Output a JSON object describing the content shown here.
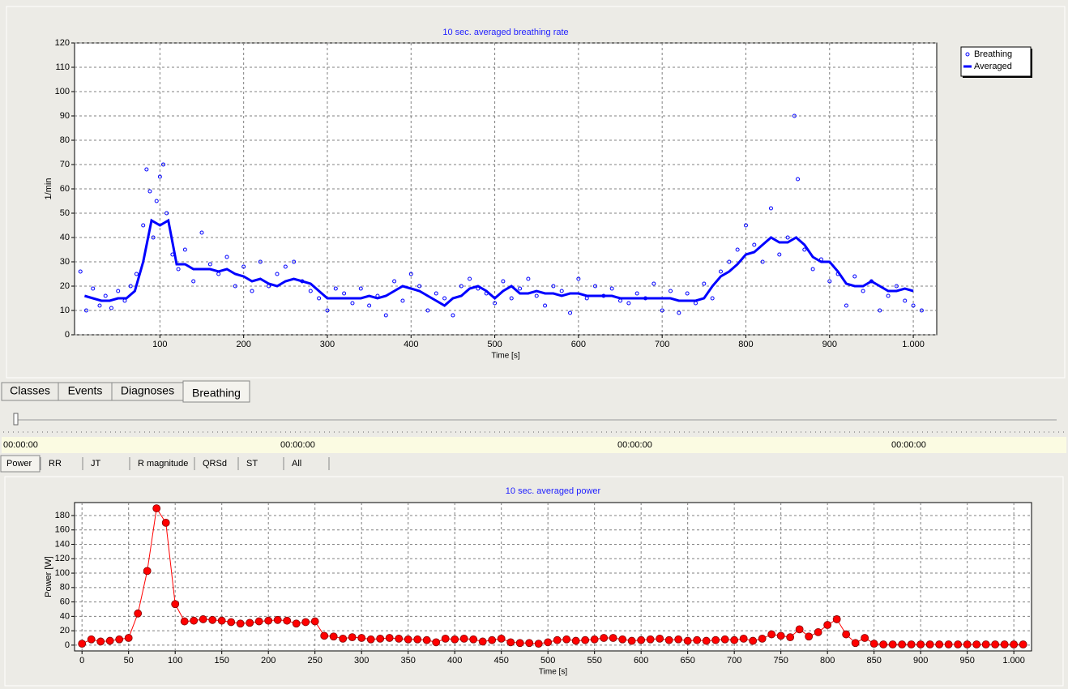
{
  "tabs": [
    "Classes",
    "Events",
    "Diagnoses",
    "Breathing"
  ],
  "active_tab": 3,
  "timeline": [
    "00:00:00",
    "00:00:00",
    "00:00:00",
    "00:00:00"
  ],
  "subtabs": [
    "Power",
    "RR",
    "JT",
    "R magnitude",
    "QRSd",
    "ST",
    "All"
  ],
  "active_subtab": 0,
  "chart_data": [
    {
      "type": "line",
      "title": "10 sec. averaged breathing rate",
      "xlabel": "Time [s]",
      "ylabel": "1/min",
      "xlim": [
        -2,
        1028
      ],
      "ylim": [
        0,
        120
      ],
      "xticks": [
        100,
        200,
        300,
        400,
        500,
        600,
        700,
        800,
        900,
        {
          "value": 1000,
          "label": "1.000"
        }
      ],
      "yticks": [
        0,
        10,
        20,
        30,
        40,
        50,
        60,
        70,
        80,
        90,
        100,
        110,
        120
      ],
      "grid": true,
      "legend": "right",
      "series": [
        {
          "name": "Breathing",
          "type": "scatter",
          "color": "#0000ff",
          "x": [
            5,
            12,
            20,
            28,
            35,
            42,
            50,
            58,
            65,
            72,
            80,
            84,
            88,
            92,
            96,
            100,
            104,
            108,
            115,
            122,
            130,
            140,
            150,
            160,
            170,
            180,
            190,
            200,
            210,
            220,
            230,
            240,
            250,
            260,
            270,
            280,
            290,
            300,
            310,
            320,
            330,
            340,
            350,
            360,
            370,
            380,
            390,
            400,
            410,
            420,
            430,
            440,
            450,
            460,
            470,
            480,
            490,
            500,
            510,
            520,
            530,
            540,
            550,
            560,
            570,
            580,
            590,
            600,
            610,
            620,
            630,
            640,
            650,
            660,
            670,
            680,
            690,
            700,
            710,
            720,
            730,
            740,
            750,
            760,
            770,
            780,
            790,
            800,
            810,
            820,
            830,
            840,
            850,
            858,
            862,
            870,
            880,
            890,
            900,
            910,
            920,
            930,
            940,
            950,
            960,
            970,
            980,
            990,
            1000,
            1010
          ],
          "values": [
            26,
            10,
            19,
            12,
            16,
            11,
            18,
            14,
            20,
            25,
            45,
            68,
            59,
            40,
            55,
            65,
            70,
            50,
            33,
            27,
            35,
            22,
            42,
            29,
            25,
            32,
            20,
            28,
            18,
            30,
            20,
            25,
            28,
            30,
            22,
            18,
            15,
            10,
            19,
            17,
            13,
            19,
            12,
            16,
            8,
            22,
            14,
            25,
            20,
            10,
            17,
            15,
            8,
            20,
            23,
            19,
            17,
            13,
            22,
            15,
            19,
            23,
            16,
            12,
            20,
            18,
            9,
            23,
            15,
            20,
            16,
            19,
            14,
            13,
            17,
            15,
            21,
            10,
            18,
            9,
            17,
            13,
            21,
            15,
            26,
            30,
            35,
            45,
            37,
            30,
            52,
            33,
            40,
            90,
            64,
            35,
            27,
            31,
            22,
            25,
            12,
            24,
            18,
            22,
            10,
            16,
            20,
            14,
            12,
            10
          ]
        },
        {
          "name": "Averaged",
          "type": "line",
          "color": "#0000ff",
          "x": [
            10,
            20,
            30,
            40,
            50,
            60,
            70,
            80,
            90,
            100,
            110,
            120,
            130,
            140,
            150,
            160,
            170,
            180,
            190,
            200,
            210,
            220,
            230,
            240,
            250,
            260,
            270,
            280,
            290,
            300,
            310,
            320,
            330,
            340,
            350,
            360,
            370,
            380,
            390,
            400,
            410,
            420,
            430,
            440,
            450,
            460,
            470,
            480,
            490,
            500,
            510,
            520,
            530,
            540,
            550,
            560,
            570,
            580,
            590,
            600,
            610,
            620,
            630,
            640,
            650,
            660,
            670,
            680,
            690,
            700,
            710,
            720,
            730,
            740,
            750,
            760,
            770,
            780,
            790,
            800,
            810,
            820,
            830,
            840,
            850,
            860,
            870,
            880,
            890,
            900,
            910,
            920,
            930,
            940,
            950,
            960,
            970,
            980,
            990,
            1000
          ],
          "values": [
            16,
            15,
            14,
            14,
            15,
            15,
            18,
            30,
            47,
            45,
            47,
            29,
            29,
            27,
            27,
            27,
            26,
            27,
            25,
            24,
            22,
            23,
            21,
            20,
            22,
            23,
            22,
            21,
            18,
            15,
            15,
            15,
            15,
            15,
            16,
            15,
            16,
            18,
            20,
            19,
            18,
            16,
            14,
            12,
            15,
            16,
            19,
            20,
            18,
            15,
            18,
            20,
            17,
            17,
            18,
            17,
            17,
            16,
            17,
            17,
            16,
            16,
            16,
            16,
            15,
            15,
            15,
            15,
            15,
            15,
            15,
            14,
            14,
            14,
            15,
            20,
            24,
            26,
            29,
            33,
            34,
            37,
            40,
            38,
            38,
            40,
            37,
            32,
            30,
            30,
            26,
            21,
            20,
            20,
            22,
            20,
            18,
            18,
            19,
            18
          ]
        }
      ]
    },
    {
      "type": "line",
      "title": "10 sec. averaged power",
      "xlabel": "Time [s]",
      "ylabel": "Power [W]",
      "xlim": [
        -8,
        1019
      ],
      "ylim": [
        -8,
        198
      ],
      "xticks": [
        0,
        50,
        100,
        150,
        200,
        250,
        300,
        350,
        400,
        450,
        500,
        550,
        600,
        650,
        700,
        750,
        800,
        850,
        900,
        950,
        {
          "value": 1000,
          "label": "1.000"
        }
      ],
      "yticks": [
        0,
        20,
        40,
        60,
        80,
        100,
        120,
        140,
        160,
        180
      ],
      "grid": true,
      "series": [
        {
          "name": "Power",
          "type": "line",
          "marker": "circle",
          "color": "#ff0000",
          "x": [
            0,
            10,
            20,
            30,
            40,
            50,
            60,
            70,
            80,
            90,
            100,
            110,
            120,
            130,
            140,
            150,
            160,
            170,
            180,
            190,
            200,
            210,
            220,
            230,
            240,
            250,
            260,
            270,
            280,
            290,
            300,
            310,
            320,
            330,
            340,
            350,
            360,
            370,
            380,
            390,
            400,
            410,
            420,
            430,
            440,
            450,
            460,
            470,
            480,
            490,
            500,
            510,
            520,
            530,
            540,
            550,
            560,
            570,
            580,
            590,
            600,
            610,
            620,
            630,
            640,
            650,
            660,
            670,
            680,
            690,
            700,
            710,
            720,
            730,
            740,
            750,
            760,
            770,
            780,
            790,
            800,
            810,
            820,
            830,
            840,
            850,
            860,
            870,
            880,
            890,
            900,
            910,
            920,
            930,
            940,
            950,
            960,
            970,
            980,
            990,
            1000,
            1010
          ],
          "values": [
            2,
            8,
            5,
            6,
            8,
            10,
            44,
            103,
            190,
            170,
            57,
            33,
            34,
            36,
            35,
            34,
            32,
            30,
            31,
            33,
            34,
            35,
            34,
            30,
            32,
            33,
            13,
            12,
            9,
            11,
            10,
            8,
            9,
            10,
            9,
            8,
            8,
            7,
            4,
            9,
            8,
            9,
            8,
            5,
            7,
            9,
            4,
            3,
            3,
            2,
            4,
            7,
            8,
            6,
            7,
            8,
            10,
            10,
            8,
            6,
            7,
            8,
            9,
            7,
            8,
            6,
            7,
            6,
            7,
            8,
            7,
            9,
            6,
            9,
            15,
            13,
            11,
            22,
            12,
            18,
            28,
            36,
            15,
            3,
            10,
            2,
            1,
            1,
            1,
            1,
            1,
            1,
            1,
            1,
            1,
            1,
            1,
            1,
            1,
            1,
            1,
            1
          ]
        }
      ]
    }
  ]
}
